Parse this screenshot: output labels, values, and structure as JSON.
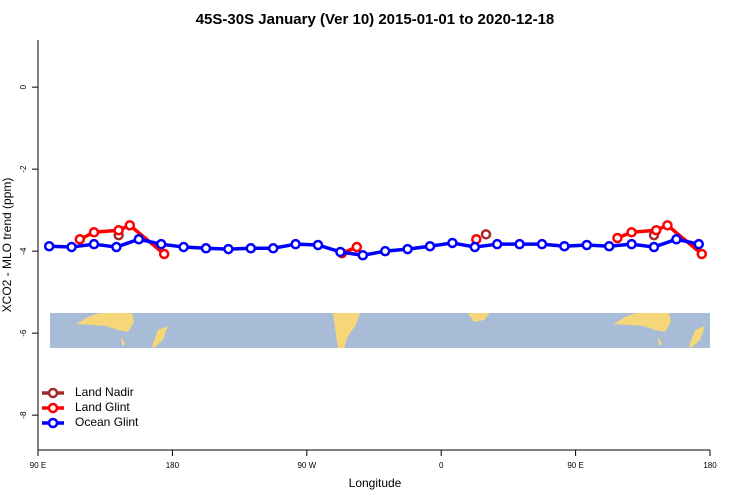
{
  "chart_data": {
    "type": "line",
    "title": "45S-30S January (Ver 10)   2015-01-01 to 2020-12-18",
    "x_label": "Longitude",
    "y_label": "XCO2 - MLO trend (ppm)",
    "xlim": [
      90,
      540
    ],
    "ylim": [
      -8.85,
      1.15
    ],
    "xticks": [
      {
        "value": 90,
        "label": "90 E"
      },
      180,
      {
        "value": 270,
        "label": "90 W"
      },
      {
        "value": 360,
        "label": "0"
      },
      {
        "value": 450,
        "label": "90 E"
      },
      {
        "value": 540,
        "label": "180"
      }
    ],
    "yticks": [
      0,
      -2,
      -4,
      -6,
      -8
    ],
    "legend": "bottom-left",
    "series": [
      {
        "name": "Land Nadir",
        "color": "#a52a2a",
        "x": [
          144,
          null,
          390,
          null,
          502.5
        ],
        "values": [
          -3.61,
          null,
          -3.59,
          null,
          -3.61
        ]
      },
      {
        "name": "Land Glint",
        "color": "#ff0000",
        "x": [
          118,
          127.5,
          144,
          151.5,
          174.5,
          null,
          293.5,
          303.5,
          null,
          383.5,
          null,
          478,
          487.5,
          504,
          511.5,
          534.5
        ],
        "values": [
          -3.71,
          -3.54,
          -3.49,
          -3.37,
          -4.07,
          null,
          -4.05,
          -3.9,
          null,
          -3.71,
          null,
          -3.68,
          -3.54,
          -3.49,
          -3.37,
          -4.07
        ]
      },
      {
        "name": "Ocean Glint",
        "color": "#0000ff",
        "x": [
          97.5,
          112.5,
          127.5,
          142.5,
          157.5,
          172.5,
          187.5,
          202.5,
          217.5,
          232.5,
          247.5,
          262.5,
          277.5,
          292.5,
          307.5,
          322.5,
          337.5,
          352.5,
          367.5,
          382.5,
          397.5,
          412.5,
          427.5,
          442.5,
          457.5,
          472.5,
          487.5,
          502.5,
          517.5,
          532.5
        ],
        "values": [
          -3.88,
          -3.9,
          -3.83,
          -3.9,
          -3.71,
          -3.83,
          -3.9,
          -3.93,
          -3.95,
          -3.93,
          -3.93,
          -3.83,
          -3.85,
          -4.02,
          -4.1,
          -4.0,
          -3.95,
          -3.88,
          -3.8,
          -3.9,
          -3.83,
          -3.83,
          -3.83,
          -3.88,
          -3.85,
          -3.88,
          -3.83,
          -3.9,
          -3.71,
          -3.83
        ]
      }
    ]
  }
}
